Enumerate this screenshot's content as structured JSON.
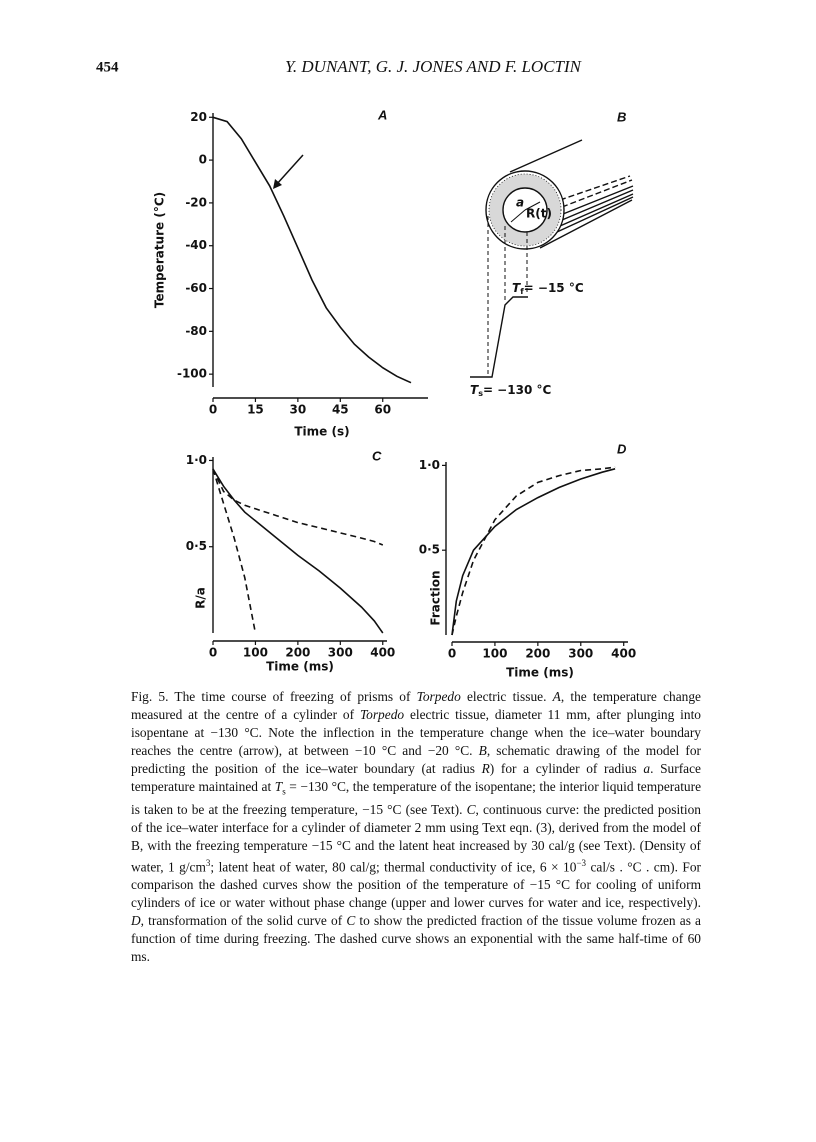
{
  "header": {
    "page_number": "454",
    "authors": "Y. DUNANT, G. J. JONES AND F. LOCTIN"
  },
  "chart_data": [
    {
      "type": "line",
      "panel_label": "A",
      "x_label": "Time (s)",
      "y_label": "Temperature (°C)",
      "xlim": [
        0,
        76
      ],
      "xticks": [
        0,
        15,
        30,
        45,
        60
      ],
      "ylim": [
        -106,
        22
      ],
      "yticks": [
        20,
        0,
        -20,
        -40,
        -60,
        -80,
        -100
      ],
      "x": [
        0,
        5,
        10,
        15,
        20,
        25,
        30,
        35,
        40,
        45,
        50,
        55,
        60,
        65,
        70
      ],
      "series": [
        {
          "color": "#111111",
          "dashed": false,
          "values": [
            20,
            18,
            10,
            -1,
            -12,
            -26,
            -41,
            -56,
            -69,
            -78,
            -86,
            -92,
            -97,
            -101,
            -104
          ]
        }
      ]
    },
    {
      "type": "line",
      "panel_label": "C",
      "x_label": "Time (ms)",
      "y_label": "R/a",
      "xlim": [
        0,
        410
      ],
      "xticks": [
        0,
        100,
        200,
        300,
        400
      ],
      "ylim": [
        0,
        1.02
      ],
      "yticks": [
        {
          "value": 1,
          "label": "1·0"
        },
        {
          "value": 0.5,
          "label": "0·5"
        }
      ],
      "x": [
        0,
        25,
        50,
        75,
        100,
        150,
        200,
        250,
        300,
        350,
        380,
        400
      ],
      "series": [
        {
          "color": "#111111",
          "dashed": false,
          "values": [
            0.95,
            0.85,
            0.77,
            0.7,
            0.65,
            0.55,
            0.45,
            0.36,
            0.26,
            0.15,
            0.07,
            0
          ]
        },
        {
          "color": "#111111",
          "dashed": true,
          "values": [
            0.95,
            0.82,
            0.77,
            0.74,
            0.72,
            0.68,
            0.64,
            0.61,
            0.58,
            0.55,
            0.53,
            0.51
          ]
        },
        {
          "color": "#111111",
          "dashed": true,
          "values": [
            0.95,
            0.75,
            0.55,
            0.32,
            0,
            null,
            null,
            null,
            null,
            null,
            null,
            null
          ]
        }
      ]
    },
    {
      "type": "line",
      "panel_label": "D",
      "x_label": "Time (ms)",
      "y_label": "Fraction",
      "xlim": [
        0,
        410
      ],
      "xticks": [
        0,
        100,
        200,
        300,
        400
      ],
      "ylim": [
        0,
        1.02
      ],
      "yticks": [
        {
          "value": 1,
          "label": "1·0"
        },
        {
          "value": 0.5,
          "label": "0·5"
        }
      ],
      "x": [
        0,
        10,
        25,
        50,
        100,
        150,
        200,
        250,
        300,
        350,
        380
      ],
      "series": [
        {
          "color": "#111111",
          "dashed": false,
          "values": [
            0,
            0.2,
            0.35,
            0.5,
            0.64,
            0.74,
            0.81,
            0.87,
            0.92,
            0.96,
            0.98
          ]
        },
        {
          "color": "#111111",
          "dashed": true,
          "values": [
            0,
            0.11,
            0.25,
            0.44,
            0.68,
            0.82,
            0.9,
            0.94,
            0.97,
            0.98,
            0.99
          ]
        }
      ]
    }
  ],
  "panel_b": {
    "panel_label": "B",
    "radius_label": "a",
    "boundary_label": "R(t)",
    "freezing": {
      "symbol": "T",
      "subscript": "f",
      "text": "= −15 °C"
    },
    "surface": {
      "symbol": "T",
      "subscript": "s",
      "text": "= −130 °C"
    }
  },
  "caption": [
    {
      "text": "Fig. 5. The time course of freezing of prisms of "
    },
    {
      "text": "Torpedo",
      "style": "italic"
    },
    {
      "text": " electric tissue. "
    },
    {
      "text": "A",
      "style": "italic"
    },
    {
      "text": ", the temperature change measured at the centre of a cylinder of "
    },
    {
      "text": "Torpedo",
      "style": "italic"
    },
    {
      "text": " electric tissue, diameter 11 mm, after plunging into isopentane at −130 °C. Note the inflection in the temperature change when the ice–water boundary reaches the centre (arrow), at between −10 °C and −20 °C. "
    },
    {
      "text": "B",
      "style": "italic"
    },
    {
      "text": ", schematic drawing of the model for predicting the position of the ice–water boundary (at radius "
    },
    {
      "text": "R",
      "style": "italic"
    },
    {
      "text": ") for a cylinder of radius "
    },
    {
      "text": "a",
      "style": "italic"
    },
    {
      "text": ". Surface temperature maintained at "
    },
    {
      "text": "T",
      "style": "italic"
    },
    {
      "text": "s",
      "style": "sub"
    },
    {
      "text": " = −130 °C, the temperature of the isopentane; the interior liquid temperature is taken to be at the freezing temperature, −15 °C (see Text). "
    },
    {
      "text": "C",
      "style": "italic"
    },
    {
      "text": ", continuous curve: the predicted position of the ice–water interface for a cylinder of diameter 2 mm using Text eqn. (3), derived from the model of B, with the freezing temperature −15 °C and the latent heat increased by 30 cal/g (see Text). (Density of water, 1 g/cm"
    },
    {
      "text": "3",
      "style": "sup"
    },
    {
      "text": "; latent heat of water, 80 cal/g; thermal conductivity of ice, 6 × 10"
    },
    {
      "text": "−3",
      "style": "sup"
    },
    {
      "text": " cal/s . °C . cm). For comparison the dashed curves show the position of the temperature of −15 °C for cooling of uniform cylinders of ice or water without phase change (upper and lower curves for water and ice, respectively). "
    },
    {
      "text": "D",
      "style": "italic"
    },
    {
      "text": ", transformation of the solid curve of "
    },
    {
      "text": "C",
      "style": "italic"
    },
    {
      "text": " to show the predicted fraction of the tissue volume frozen as a function of time during freezing. The dashed curve shows an exponential with the same half-time of 60 ms."
    }
  ]
}
